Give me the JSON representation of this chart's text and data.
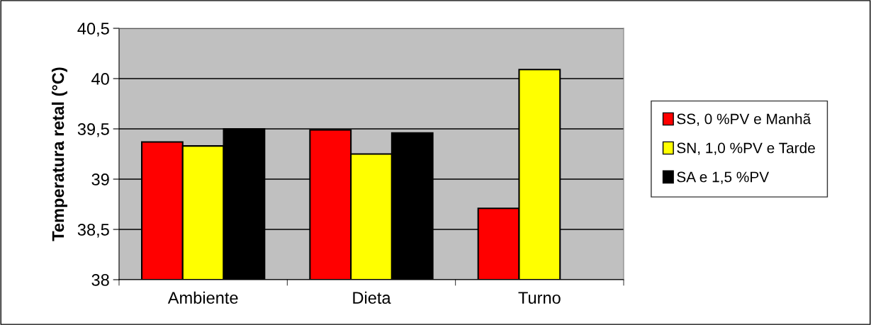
{
  "chart_data": {
    "type": "bar",
    "ylabel": "Temperatura retal (°C)",
    "categories": [
      "Ambiente",
      "Dieta",
      "Turno"
    ],
    "series": [
      {
        "name": "SS, 0 %PV e Manhã",
        "color": "#ff0000",
        "values": [
          39.37,
          39.49,
          38.71
        ]
      },
      {
        "name": "SN, 1,0 %PV e Tarde",
        "color": "#ffff00",
        "values": [
          39.33,
          39.25,
          40.09
        ]
      },
      {
        "name": "SA e 1,5 %PV",
        "color": "#000000",
        "values": [
          39.5,
          39.46,
          null
        ]
      }
    ],
    "ylim": [
      38,
      40.5
    ],
    "yticks": [
      {
        "value": 38,
        "label": "38"
      },
      {
        "value": 38.5,
        "label": "38,5"
      },
      {
        "value": 39,
        "label": "39"
      },
      {
        "value": 39.5,
        "label": "39,5"
      },
      {
        "value": 40,
        "label": "40"
      },
      {
        "value": 40.5,
        "label": "40,5"
      }
    ],
    "grid": "y",
    "legend": "right"
  }
}
